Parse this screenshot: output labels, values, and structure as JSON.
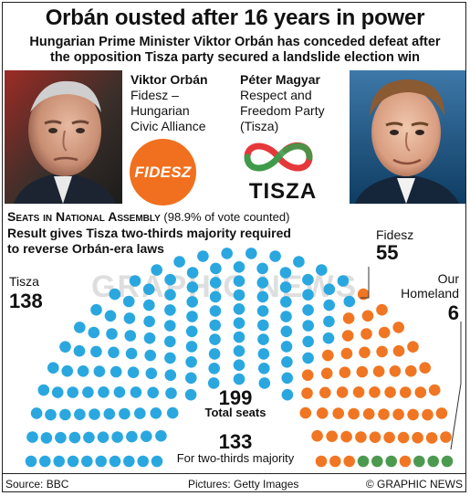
{
  "title": "Orbán ousted after 16 years in power",
  "subtitle_line1": "Hungarian Prime Minister Viktor Orbán has conceded defeat after",
  "subtitle_line2": "the opposition Tisza party secured a landslide election win",
  "candidate_left": {
    "name": "Viktor Orbán",
    "party_lines": [
      "Fidesz –",
      "Hungarian",
      "Civic Alliance"
    ],
    "logo_text": "FIDESZ"
  },
  "candidate_right": {
    "name": "Péter Magyar",
    "party_lines": [
      "Respect and",
      "Freedom Party",
      "(Tisza)"
    ],
    "logo_text": "TISZA"
  },
  "seats_heading": "Seats in National Assembly",
  "seats_note": "(98.9% of vote counted)",
  "result_line1": "Result gives Tisza two-thirds majority required",
  "result_line2": "to reverse Orbán-era laws",
  "watermark": "GRAPHIC NEWS",
  "chart_data": {
    "type": "parliament",
    "series": [
      {
        "name": "Tisza",
        "seats": 138,
        "color": "#2aa7df"
      },
      {
        "name": "Fidesz",
        "seats": 55,
        "color": "#f07623"
      },
      {
        "name": "Our Homeland",
        "seats": 6,
        "color": "#4c9a4f"
      }
    ],
    "total_seats": 199,
    "total_label": "Total seats",
    "majority_seats": 133,
    "majority_label": "For two-thirds majority"
  },
  "labels": {
    "tisza_name": "Tisza",
    "tisza_num": "138",
    "fidesz_name": "Fidesz",
    "fidesz_num": "55",
    "homeland_line1": "Our",
    "homeland_line2": "Homeland",
    "homeland_num": "6",
    "total_num": "199",
    "majority_num": "133"
  },
  "footer": {
    "source": "Source: BBC",
    "pictures": "Pictures: Getty Images",
    "credit": "© GRAPHIC NEWS"
  },
  "colors": {
    "tisza": "#2aa7df",
    "fidesz": "#f07623",
    "homeland": "#4c9a4f",
    "fidesz_logo": "#f0701f",
    "tisza_logo_red": "#e5383b",
    "tisza_logo_green": "#3f9a4a"
  }
}
